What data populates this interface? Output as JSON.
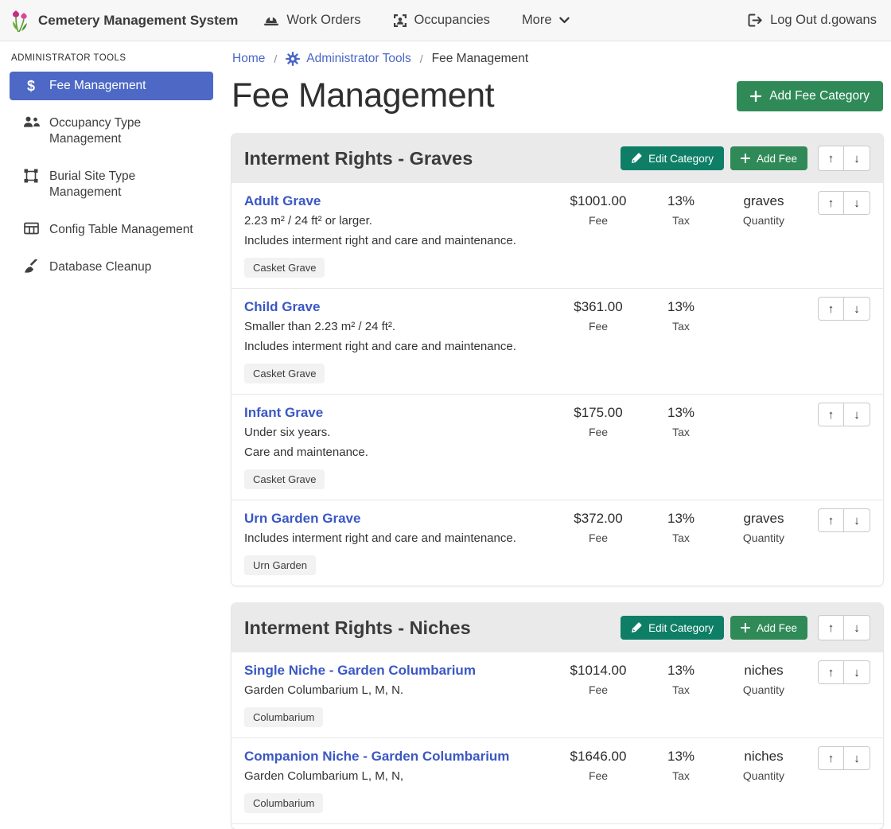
{
  "navbar": {
    "brand": "Cemetery Management System",
    "items": [
      {
        "label": "Work Orders",
        "icon": "hard-hat-icon"
      },
      {
        "label": "Occupancies",
        "icon": "occupancy-frame-icon"
      },
      {
        "label": "More",
        "icon": "chevron-down-icon"
      }
    ],
    "logout_label": "Log Out d.gowans"
  },
  "sidebar": {
    "heading": "ADMINISTRATOR TOOLS",
    "items": [
      {
        "label": "Fee Management",
        "icon": "dollar-icon",
        "active": true
      },
      {
        "label": "Occupancy Type Management",
        "icon": "people-icon",
        "active": false
      },
      {
        "label": "Burial Site Type Management",
        "icon": "crop-frame-icon",
        "active": false
      },
      {
        "label": "Config Table Management",
        "icon": "table-icon",
        "active": false
      },
      {
        "label": "Database Cleanup",
        "icon": "broom-icon",
        "active": false
      }
    ]
  },
  "breadcrumb": {
    "home": "Home",
    "separator": "/",
    "section": "Administrator Tools",
    "current": "Fee Management"
  },
  "page": {
    "title": "Fee Management",
    "add_category_label": "Add Fee Category"
  },
  "category_actions": {
    "edit_label": "Edit Category",
    "add_fee_label": "Add Fee"
  },
  "stat_labels": {
    "fee": "Fee",
    "tax": "Tax",
    "quantity": "Quantity"
  },
  "categories": [
    {
      "title": "Interment Rights - Graves",
      "fees": [
        {
          "name": "Adult Grave",
          "fee": "$1001.00",
          "tax": "13%",
          "quantity": "graves",
          "descriptions": [
            "2.23 m² / 24 ft² or larger.",
            "Includes interment right and care and maintenance."
          ],
          "badge": "Casket Grave"
        },
        {
          "name": "Child Grave",
          "fee": "$361.00",
          "tax": "13%",
          "quantity": "",
          "descriptions": [
            "Smaller than 2.23 m² / 24 ft².",
            "Includes interment right and care and maintenance."
          ],
          "badge": "Casket Grave"
        },
        {
          "name": "Infant Grave",
          "fee": "$175.00",
          "tax": "13%",
          "quantity": "",
          "descriptions": [
            "Under six years.",
            "Care and maintenance."
          ],
          "badge": "Casket Grave"
        },
        {
          "name": "Urn Garden Grave",
          "fee": "$372.00",
          "tax": "13%",
          "quantity": "graves",
          "descriptions": [
            "Includes interment right and care and maintenance."
          ],
          "badge": "Urn Garden"
        }
      ]
    },
    {
      "title": "Interment Rights - Niches",
      "fees": [
        {
          "name": "Single Niche - Garden Columbarium",
          "fee": "$1014.00",
          "tax": "13%",
          "quantity": "niches",
          "descriptions": [
            "Garden Columbarium L, M, N."
          ],
          "badge": "Columbarium"
        },
        {
          "name": "Companion Niche - Garden Columbarium",
          "fee": "$1646.00",
          "tax": "13%",
          "quantity": "niches",
          "descriptions": [
            "Garden Columbarium L, M, N,"
          ],
          "badge": "Columbarium"
        }
      ]
    }
  ],
  "colors": {
    "accent_blue": "#4d68c5",
    "link_blue": "#3a57c4",
    "green": "#2f8a58",
    "teal": "#0e7f66",
    "navbar_bg": "#f7f7f7",
    "card_header_bg": "#eaeaea"
  }
}
